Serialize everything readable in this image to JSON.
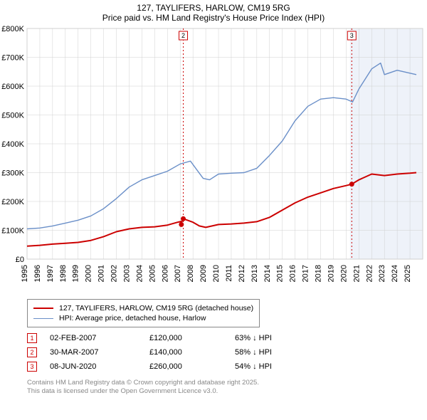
{
  "title_line1": "127, TAYLIFERS, HARLOW, CM19 5RG",
  "title_line2": "Price paid vs. HM Land Registry's House Price Index (HPI)",
  "chart": {
    "type": "line",
    "background_color": "#ffffff",
    "grid_color": "#d0d0d0",
    "axis_color": "#000000",
    "ylim": [
      0,
      800000
    ],
    "ytick_step": 100000,
    "y_ticks": [
      "£0",
      "£100K",
      "£200K",
      "£300K",
      "£400K",
      "£500K",
      "£600K",
      "£700K",
      "£800K"
    ],
    "xlim": [
      1995,
      2026
    ],
    "x_ticks": [
      1995,
      1996,
      1997,
      1998,
      1999,
      2000,
      2001,
      2002,
      2003,
      2004,
      2005,
      2006,
      2007,
      2008,
      2009,
      2010,
      2011,
      2012,
      2013,
      2014,
      2015,
      2016,
      2017,
      2018,
      2019,
      2020,
      2021,
      2022,
      2023,
      2024,
      2025
    ],
    "future_shade_from": 2020.3,
    "future_shade_color": "#eef2f9",
    "series": [
      {
        "name": "price_paid",
        "color": "#cc0000",
        "width": 2.0,
        "points": [
          [
            1995,
            45000
          ],
          [
            1996,
            48000
          ],
          [
            1997,
            52000
          ],
          [
            1998,
            55000
          ],
          [
            1999,
            58000
          ],
          [
            2000,
            65000
          ],
          [
            2001,
            78000
          ],
          [
            2002,
            95000
          ],
          [
            2003,
            105000
          ],
          [
            2004,
            110000
          ],
          [
            2005,
            112000
          ],
          [
            2006,
            118000
          ],
          [
            2006.8,
            128000
          ],
          [
            2007.2,
            132000
          ],
          [
            2007.25,
            140000
          ],
          [
            2008,
            128000
          ],
          [
            2008.5,
            115000
          ],
          [
            2009,
            110000
          ],
          [
            2010,
            120000
          ],
          [
            2011,
            122000
          ],
          [
            2012,
            125000
          ],
          [
            2013,
            130000
          ],
          [
            2014,
            145000
          ],
          [
            2015,
            170000
          ],
          [
            2016,
            195000
          ],
          [
            2017,
            215000
          ],
          [
            2018,
            230000
          ],
          [
            2019,
            245000
          ],
          [
            2020,
            255000
          ],
          [
            2020.44,
            260000
          ],
          [
            2021,
            275000
          ],
          [
            2022,
            295000
          ],
          [
            2023,
            290000
          ],
          [
            2024,
            295000
          ],
          [
            2025,
            298000
          ],
          [
            2025.5,
            300000
          ]
        ]
      },
      {
        "name": "hpi",
        "color": "#6a8fc8",
        "width": 1.4,
        "points": [
          [
            1995,
            105000
          ],
          [
            1996,
            108000
          ],
          [
            1997,
            115000
          ],
          [
            1998,
            125000
          ],
          [
            1999,
            135000
          ],
          [
            2000,
            150000
          ],
          [
            2001,
            175000
          ],
          [
            2002,
            210000
          ],
          [
            2003,
            250000
          ],
          [
            2004,
            275000
          ],
          [
            2005,
            290000
          ],
          [
            2006,
            305000
          ],
          [
            2007,
            330000
          ],
          [
            2007.8,
            340000
          ],
          [
            2008.3,
            310000
          ],
          [
            2008.8,
            280000
          ],
          [
            2009.3,
            275000
          ],
          [
            2010,
            295000
          ],
          [
            2011,
            298000
          ],
          [
            2012,
            300000
          ],
          [
            2013,
            315000
          ],
          [
            2014,
            360000
          ],
          [
            2015,
            410000
          ],
          [
            2016,
            480000
          ],
          [
            2017,
            530000
          ],
          [
            2018,
            555000
          ],
          [
            2019,
            560000
          ],
          [
            2020,
            555000
          ],
          [
            2020.5,
            545000
          ],
          [
            2021,
            590000
          ],
          [
            2022,
            660000
          ],
          [
            2022.7,
            680000
          ],
          [
            2023,
            640000
          ],
          [
            2024,
            655000
          ],
          [
            2025,
            645000
          ],
          [
            2025.5,
            640000
          ]
        ]
      }
    ],
    "sale_markers": [
      {
        "n": 1,
        "x": 2007.09,
        "y": 120000,
        "color": "#cc0000",
        "show_line": false
      },
      {
        "n": 2,
        "x": 2007.24,
        "y": 140000,
        "color": "#cc0000",
        "show_line": true
      },
      {
        "n": 3,
        "x": 2020.44,
        "y": 260000,
        "color": "#cc0000",
        "show_line": true
      }
    ]
  },
  "legend": [
    {
      "color": "#cc0000",
      "width": 2.5,
      "label": "127, TAYLIFERS, HARLOW, CM19 5RG (detached house)"
    },
    {
      "color": "#6a8fc8",
      "width": 1.5,
      "label": "HPI: Average price, detached house, Harlow"
    }
  ],
  "events": [
    {
      "n": "1",
      "color": "#cc0000",
      "date": "02-FEB-2007",
      "price": "£120,000",
      "diff": "63% ↓ HPI"
    },
    {
      "n": "2",
      "color": "#cc0000",
      "date": "30-MAR-2007",
      "price": "£140,000",
      "diff": "58% ↓ HPI"
    },
    {
      "n": "3",
      "color": "#cc0000",
      "date": "08-JUN-2020",
      "price": "£260,000",
      "diff": "54% ↓ HPI"
    }
  ],
  "footer_line1": "Contains HM Land Registry data © Crown copyright and database right 2025.",
  "footer_line2": "This data is licensed under the Open Government Licence v3.0."
}
